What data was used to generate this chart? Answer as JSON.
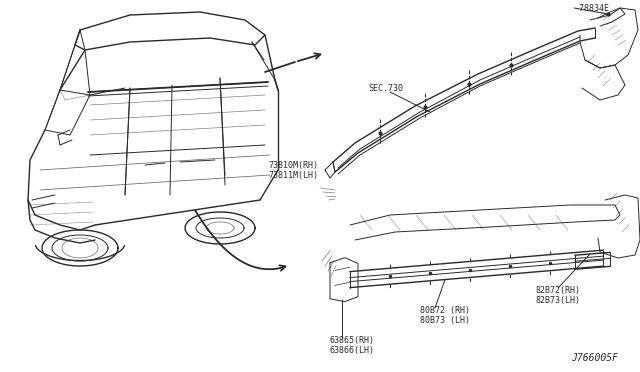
{
  "bg_color": "#ffffff",
  "line_color": "#2a2a2a",
  "text_color": "#2a2a2a",
  "diagram_code": "J766005F",
  "labels": {
    "sec730": "SEC.730",
    "part78834E": "-78834E",
    "part73810M_RH": "73810M(RH)",
    "part73811M_LH": "73811M(LH)",
    "part82872_RH": "82B72(RH)",
    "part82873_LH": "82B73(LH)",
    "part80B72_RH": "80B72 (RH)",
    "part80B73_LH": "80B73 (LH)",
    "part63865_RH": "63865(RH)",
    "part63866_LH": "63866(LH)"
  },
  "font_size_labels": 6.0,
  "font_size_code": 7,
  "figsize": [
    6.4,
    3.72
  ],
  "dpi": 100
}
